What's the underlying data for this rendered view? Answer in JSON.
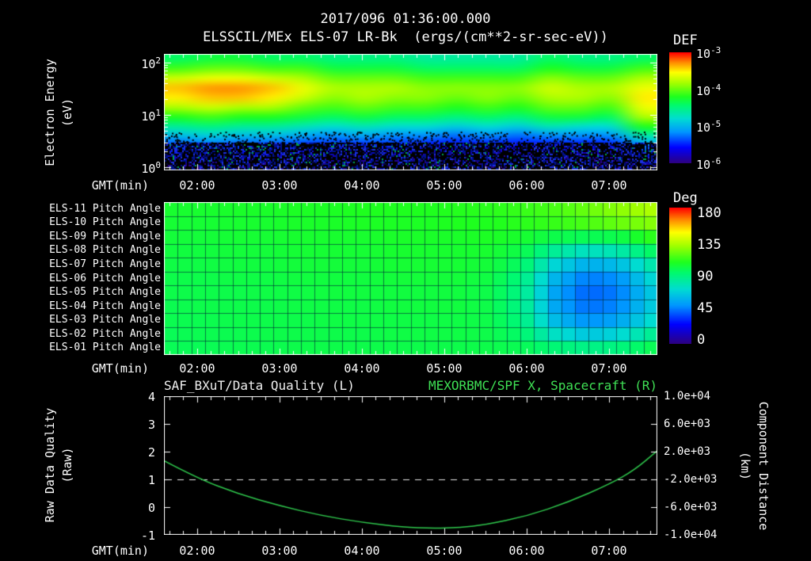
{
  "header": {
    "date_title": "2017/096 01:36:00.000",
    "main_title": "ELSSCIL/MEx ELS-07 LR-Bk  (ergs/(cm**2-sr-sec-eV))"
  },
  "colors": {
    "background": "#000000",
    "text": "#ffffff",
    "title_green": "#3fe055",
    "curve_green": "#2fc94d",
    "quality_dash": "#e8e8e8"
  },
  "time_axis": {
    "label": "GMT(min)",
    "start_hour": 1.6,
    "end_hour": 7.583,
    "ticks": [
      "02:00",
      "03:00",
      "04:00",
      "05:00",
      "06:00",
      "07:00"
    ]
  },
  "spectrogram": {
    "ylabel_line1": "Electron Energy",
    "ylabel_line2": "(eV)",
    "y_ticks": [
      {
        "base": "10",
        "exp": "2"
      },
      {
        "base": "10",
        "exp": "1"
      },
      {
        "base": "10",
        "exp": "0"
      }
    ],
    "colorbar": {
      "title": "DEF",
      "ticks": [
        {
          "base": "10",
          "exp": "-3"
        },
        {
          "base": "10",
          "exp": "-4"
        },
        {
          "base": "10",
          "exp": "-5"
        },
        {
          "base": "10",
          "exp": "-6"
        }
      ]
    }
  },
  "pitch_panel": {
    "row_labels": [
      "ELS-11 Pitch Angle",
      "ELS-10 Pitch Angle",
      "ELS-09 Pitch Angle",
      "ELS-08 Pitch Angle",
      "ELS-07 Pitch Angle",
      "ELS-06 Pitch Angle",
      "ELS-05 Pitch Angle",
      "ELS-04 Pitch Angle",
      "ELS-03 Pitch Angle",
      "ELS-02 Pitch Angle",
      "ELS-01 Pitch Angle"
    ],
    "colorbar": {
      "title": "Deg",
      "ticks": [
        "180",
        "135",
        "90",
        "45",
        "0"
      ]
    }
  },
  "line_panel": {
    "title_left": "SAF_BXuT/Data Quality (L)",
    "title_right": "MEXORBMC/SPF X, Spacecraft (R)",
    "ylabel_left_line1": "Raw Data Quality",
    "ylabel_left_line2": "(Raw)",
    "ylabel_right_line1": "Component Distance",
    "ylabel_right_line2": "(km)",
    "left_ticks": [
      "4",
      "3",
      "2",
      "1",
      "0",
      "-1"
    ],
    "right_ticks": [
      "1.0e+04",
      "6.0e+03",
      "2.0e+03",
      "-2.0e+03",
      "-6.0e+03",
      "-1.0e+04"
    ]
  },
  "chart_data": [
    {
      "name": "electron_spectrogram",
      "type": "heatmap",
      "title": "ELSSCIL/MEx ELS-07 LR-Bk (ergs/(cm**2-sr-sec-eV))",
      "x_start": "01:36",
      "x_end": "07:35",
      "x_ticks": [
        "02:00",
        "03:00",
        "04:00",
        "05:00",
        "06:00",
        "07:00"
      ],
      "y_scale": "log",
      "ylabel": "Electron Energy (eV)",
      "y_range_ev": [
        1,
        160
      ],
      "value_units": "log10 DEF ergs/(cm**2-sr-sec-eV)",
      "value_range": [
        -6,
        -3
      ],
      "row_energies_ev": [
        150,
        100,
        60,
        40,
        28,
        18,
        12,
        8,
        5.5,
        3.7,
        2.4,
        1.6
      ],
      "values": [
        [
          -4.4,
          -4.3,
          -4.3,
          -4.4,
          -4.4,
          -4.5,
          -4.5,
          -4.5,
          -4.6,
          -4.6,
          -4.6,
          -4.6,
          -4.4,
          -4.5,
          -4.5,
          -4.4
        ],
        [
          -4.1,
          -4.0,
          -4.0,
          -4.1,
          -4.1,
          -4.3,
          -4.3,
          -4.3,
          -4.4,
          -4.4,
          -4.4,
          -4.4,
          -4.2,
          -4.3,
          -4.3,
          -4.1
        ],
        [
          -3.7,
          -3.6,
          -3.6,
          -3.7,
          -3.8,
          -4.0,
          -4.0,
          -4.0,
          -4.1,
          -4.1,
          -4.1,
          -4.1,
          -3.9,
          -4.0,
          -4.0,
          -3.8
        ],
        [
          -3.4,
          -3.3,
          -3.3,
          -3.4,
          -3.6,
          -3.8,
          -3.8,
          -3.8,
          -3.9,
          -3.9,
          -3.9,
          -3.9,
          -3.7,
          -3.8,
          -3.8,
          -3.6
        ],
        [
          -3.5,
          -3.4,
          -3.4,
          -3.5,
          -3.7,
          -3.9,
          -3.8,
          -3.9,
          -3.9,
          -4.0,
          -3.9,
          -4.0,
          -3.8,
          -3.8,
          -3.9,
          -3.5
        ],
        [
          -3.8,
          -3.7,
          -3.8,
          -3.8,
          -4.0,
          -4.1,
          -4.0,
          -4.1,
          -4.1,
          -4.2,
          -4.1,
          -4.2,
          -4.0,
          -4.0,
          -4.1,
          -3.6
        ],
        [
          -4.2,
          -4.1,
          -4.2,
          -4.2,
          -4.3,
          -4.4,
          -4.3,
          -4.4,
          -4.4,
          -4.5,
          -4.4,
          -4.5,
          -4.3,
          -4.3,
          -4.4,
          -3.8
        ],
        [
          -4.6,
          -4.5,
          -4.6,
          -4.6,
          -4.7,
          -4.8,
          -4.7,
          -4.8,
          -4.8,
          -4.9,
          -4.8,
          -4.9,
          -4.7,
          -4.8,
          -4.8,
          -4.2
        ],
        [
          -5.0,
          -4.9,
          -5.0,
          -5.0,
          -5.1,
          -5.2,
          -5.1,
          -5.2,
          -5.2,
          -5.3,
          -5.2,
          -5.3,
          -5.2,
          -5.2,
          -5.2,
          -4.7
        ],
        [
          -5.4,
          -5.3,
          -5.4,
          -5.4,
          -5.5,
          -5.5,
          -5.5,
          -5.5,
          -5.6,
          -5.6,
          -5.6,
          -5.6,
          -5.6,
          -5.6,
          -5.6,
          -5.2
        ],
        [
          -5.7,
          -5.7,
          -5.7,
          -5.7,
          -5.8,
          -5.8,
          -5.8,
          -5.8,
          -5.9,
          -5.9,
          -5.9,
          -5.9,
          -5.9,
          -5.9,
          -5.9,
          -5.6
        ],
        [
          -6.0,
          -6.0,
          -6.0,
          -6.0,
          -6.0,
          -6.0,
          -6.0,
          -6.0,
          -6.0,
          -6.0,
          -6.0,
          -6.0,
          -6.0,
          -6.0,
          -6.0,
          -5.9
        ]
      ]
    },
    {
      "name": "pitch_angles",
      "type": "heatmap",
      "rows": [
        "ELS-11",
        "ELS-10",
        "ELS-09",
        "ELS-08",
        "ELS-07",
        "ELS-06",
        "ELS-05",
        "ELS-04",
        "ELS-03",
        "ELS-02",
        "ELS-01"
      ],
      "value_units": "degrees",
      "value_range": [
        0,
        180
      ],
      "values": [
        [
          105,
          105,
          106,
          106,
          107,
          107,
          108,
          108,
          108,
          109,
          110,
          112,
          115,
          120,
          126,
          132
        ],
        [
          104,
          104,
          105,
          105,
          106,
          106,
          107,
          107,
          107,
          108,
          108,
          110,
          112,
          115,
          120,
          125
        ],
        [
          103,
          103,
          104,
          104,
          105,
          105,
          105,
          106,
          106,
          106,
          107,
          105,
          100,
          98,
          100,
          110
        ],
        [
          102,
          102,
          103,
          103,
          104,
          104,
          104,
          105,
          105,
          105,
          105,
          100,
          85,
          75,
          80,
          95
        ],
        [
          101,
          101,
          102,
          102,
          103,
          103,
          103,
          104,
          104,
          104,
          103,
          95,
          70,
          58,
          62,
          80
        ],
        [
          100,
          100,
          101,
          101,
          102,
          102,
          102,
          103,
          103,
          103,
          101,
          90,
          60,
          46,
          50,
          70
        ],
        [
          100,
          100,
          100,
          101,
          101,
          102,
          102,
          102,
          102,
          102,
          100,
          88,
          55,
          42,
          46,
          65
        ],
        [
          99,
          100,
          100,
          100,
          101,
          101,
          101,
          102,
          102,
          102,
          100,
          88,
          56,
          44,
          48,
          66
        ],
        [
          99,
          99,
          100,
          100,
          100,
          101,
          101,
          101,
          101,
          101,
          100,
          90,
          62,
          50,
          55,
          72
        ],
        [
          98,
          99,
          99,
          100,
          100,
          100,
          100,
          101,
          101,
          101,
          100,
          94,
          75,
          65,
          70,
          85
        ],
        [
          98,
          98,
          99,
          99,
          100,
          100,
          100,
          100,
          100,
          100,
          100,
          98,
          92,
          88,
          90,
          98
        ]
      ]
    },
    {
      "name": "quality_and_position",
      "type": "line",
      "left_ylim": [
        -1,
        4
      ],
      "right_ylim": [
        -10000,
        10000
      ],
      "series": [
        {
          "name": "SAF_BXuT/Data Quality",
          "axis": "left",
          "style": "dashed",
          "constant_value": 1
        },
        {
          "name": "MEXORBMC/SPF X, Spacecraft",
          "axis": "right",
          "style": "solid",
          "points_hours_km": [
            [
              1.6,
              700
            ],
            [
              2.0,
              -1800
            ],
            [
              2.5,
              -4100
            ],
            [
              3.0,
              -5800
            ],
            [
              3.5,
              -7200
            ],
            [
              4.0,
              -8200
            ],
            [
              4.5,
              -8900
            ],
            [
              4.85,
              -9050
            ],
            [
              5.2,
              -8950
            ],
            [
              5.5,
              -8550
            ],
            [
              6.0,
              -7300
            ],
            [
              6.5,
              -5300
            ],
            [
              7.0,
              -2700
            ],
            [
              7.3,
              -700
            ],
            [
              7.58,
              2100
            ]
          ]
        }
      ]
    }
  ]
}
